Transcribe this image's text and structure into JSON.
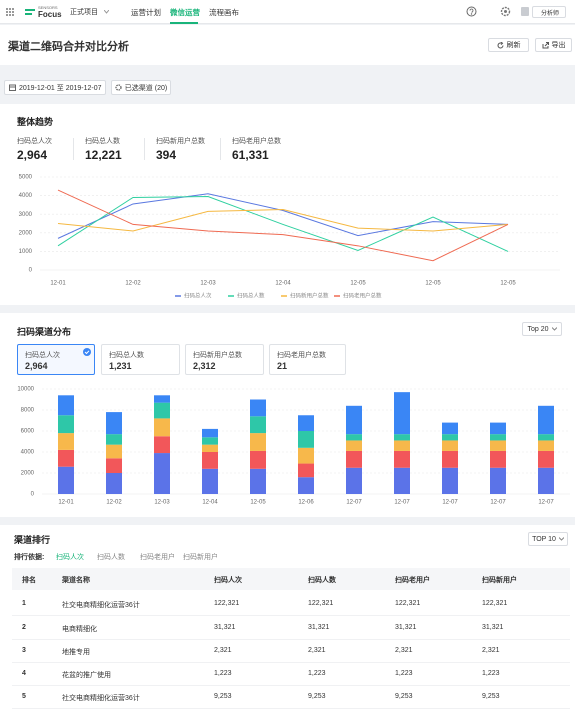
{
  "nav": {
    "brand_top": "SENSORS",
    "brand": "Focus",
    "project": "正式项目",
    "menu": [
      "运营计划",
      "微信运营",
      "流程画布"
    ],
    "active": 1,
    "user": "分析师"
  },
  "header": {
    "title": "渠道二维码合并对比分析",
    "buttons": [
      "刷新",
      "导出"
    ]
  },
  "filters": {
    "date_range": "2019-12-01 至 2019-12-07",
    "channels": "已选渠道 (20)"
  },
  "trend": {
    "title": "整体趋势",
    "stats": [
      {
        "label": "扫码总人次",
        "value": "2,964"
      },
      {
        "label": "扫码总人数",
        "value": "12,221"
      },
      {
        "label": "扫码新用户总数",
        "value": "394"
      },
      {
        "label": "扫码老用户总数",
        "value": "61,331"
      }
    ]
  },
  "chart_data": [
    {
      "type": "line",
      "categories": [
        "12-01",
        "12-02",
        "12-03",
        "12-04",
        "12-05",
        "12-05",
        "12-05"
      ],
      "series": [
        {
          "name": "扫码总人次",
          "color": "#5a78e0",
          "values": [
            1700,
            3550,
            4100,
            3200,
            1850,
            2600,
            2450
          ]
        },
        {
          "name": "扫码总人数",
          "color": "#2fd0a0",
          "values": [
            1300,
            3900,
            3950,
            2450,
            1050,
            2850,
            1000
          ]
        },
        {
          "name": "扫码新用户总数",
          "color": "#f5b841",
          "values": [
            2500,
            2100,
            3150,
            3250,
            2250,
            2100,
            2450
          ]
        },
        {
          "name": "扫码老用户总数",
          "color": "#ef6a52",
          "values": [
            4300,
            2450,
            2100,
            1900,
            1300,
            500,
            2450
          ]
        }
      ],
      "ylim": [
        0,
        5000
      ],
      "yticks": [
        0,
        1000,
        2000,
        3000,
        4000,
        5000
      ],
      "grid": true,
      "legend": "bottom"
    },
    {
      "type": "stacked_bar",
      "categories": [
        "12-01",
        "12-02",
        "12-03",
        "12-04",
        "12-05",
        "12-06",
        "12-07",
        "12-07",
        "12-07",
        "12-07",
        "12-07"
      ],
      "series": [
        {
          "color": "#5b73e8",
          "values": [
            2600,
            2000,
            3900,
            2400,
            2400,
            1600,
            2500,
            2500,
            2500,
            2500,
            2500
          ]
        },
        {
          "color": "#f2575a",
          "values": [
            1600,
            1400,
            1600,
            1600,
            1700,
            1300,
            1600,
            1600,
            1600,
            1600,
            1600
          ]
        },
        {
          "color": "#f7b84b",
          "values": [
            1600,
            1300,
            1700,
            700,
            1700,
            1500,
            1000,
            1000,
            1000,
            1000,
            1000
          ]
        },
        {
          "color": "#2ec7a8",
          "values": [
            1700,
            1000,
            1500,
            700,
            1600,
            1600,
            600,
            600,
            600,
            600,
            600
          ]
        },
        {
          "color": "#3a86f5",
          "values": [
            1900,
            2100,
            700,
            800,
            1600,
            1500,
            2700,
            4000,
            1100,
            1100,
            2700
          ]
        }
      ],
      "ylim": [
        0,
        10000
      ],
      "yticks": [
        0,
        2000,
        4000,
        6000,
        8000,
        10000
      ],
      "grid": true
    }
  ],
  "distribution": {
    "title": "扫码渠道分布",
    "dropdown": "Top 20",
    "selected": 0,
    "cards": [
      {
        "label": "扫码总人次",
        "value": "2,964"
      },
      {
        "label": "扫码总人数",
        "value": "1,231"
      },
      {
        "label": "扫码新用户总数",
        "value": "2,312"
      },
      {
        "label": "扫码老用户总数",
        "value": "21"
      }
    ]
  },
  "ranking": {
    "title": "渠道排行",
    "dropdown": "TOP 10",
    "sort_label": "排行依据:",
    "tabs": [
      "扫码人次",
      "扫码人数",
      "扫码老用户",
      "扫码新用户"
    ],
    "active_tab": 0,
    "columns": [
      "排名",
      "渠道名称",
      "扫码人次",
      "扫码人数",
      "扫码老用户",
      "扫码新用户"
    ],
    "rows": [
      [
        "1",
        "社交电商精细化运营36计",
        "122,321",
        "122,321",
        "122,321",
        "122,321"
      ],
      [
        "2",
        "电商精细化",
        "31,321",
        "31,321",
        "31,321",
        "31,321"
      ],
      [
        "3",
        "地推专用",
        "2,321",
        "2,321",
        "2,321",
        "2,321"
      ],
      [
        "4",
        "花盆的推广使用",
        "1,223",
        "1,223",
        "1,223",
        "1,223"
      ],
      [
        "5",
        "社交电商精细化运营36计",
        "9,253",
        "9,253",
        "9,253",
        "9,253"
      ]
    ]
  }
}
